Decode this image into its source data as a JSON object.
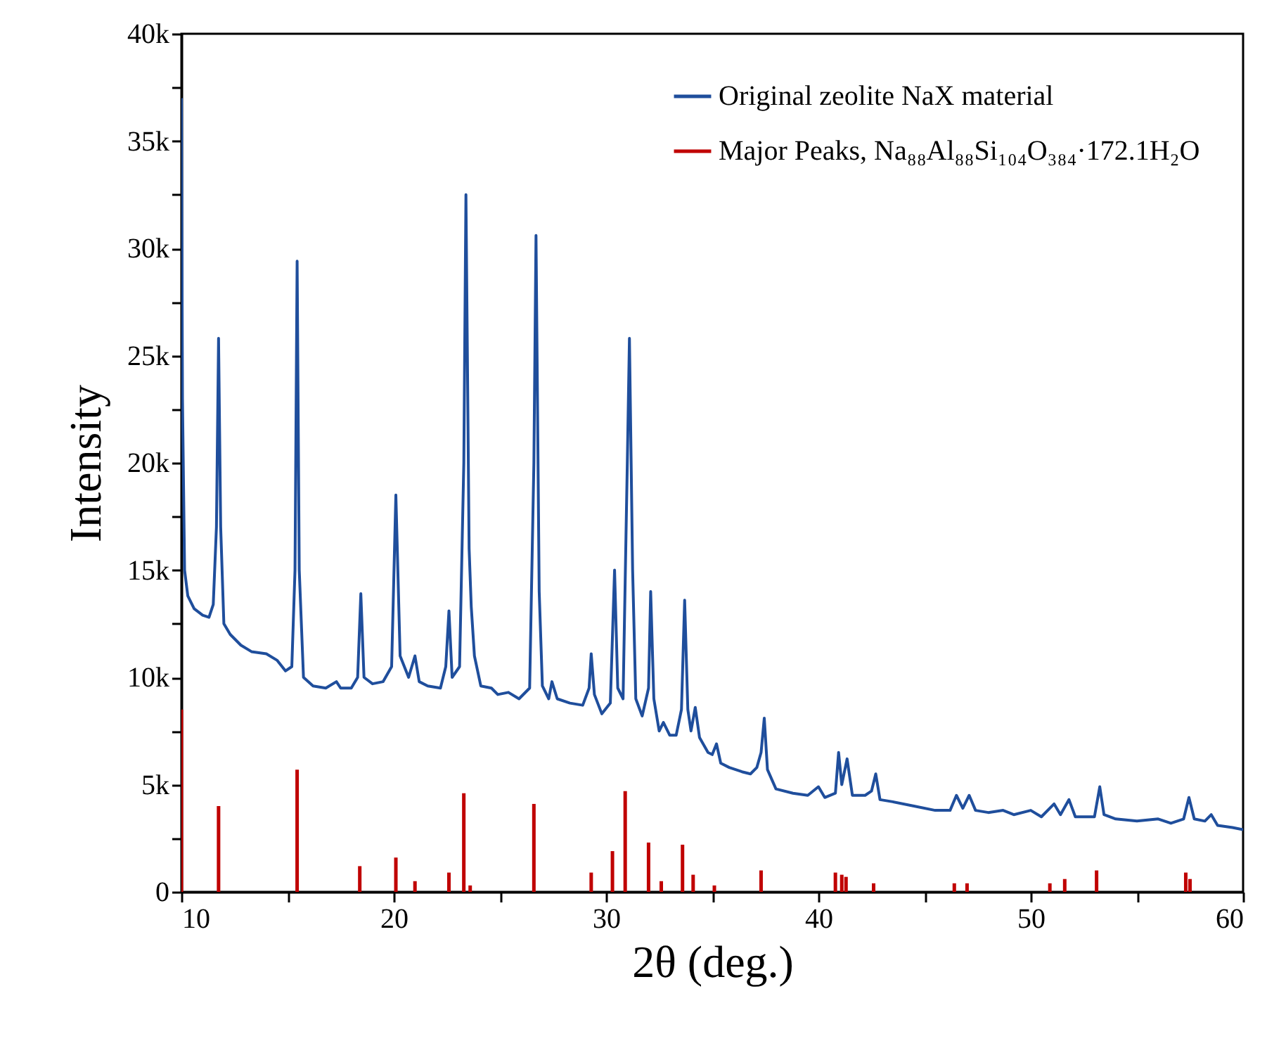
{
  "chart_data": {
    "type": "line",
    "xlabel": "2θ (deg.)",
    "ylabel": "Intensity",
    "xlim": [
      10,
      60
    ],
    "ylim": [
      0,
      40000
    ],
    "xticks": [
      10,
      {
        "value": 15,
        "label": null
      },
      20,
      {
        "value": 25,
        "label": null
      },
      30,
      {
        "value": 35,
        "label": null
      },
      40,
      {
        "value": 45,
        "label": null
      },
      50,
      {
        "value": 55,
        "label": null
      },
      60
    ],
    "yticks": [
      {
        "value": 0,
        "label": "0"
      },
      {
        "value": 2500,
        "label": null
      },
      {
        "value": 5000,
        "label": "5k"
      },
      {
        "value": 7500,
        "label": null
      },
      {
        "value": 10000,
        "label": "10k"
      },
      {
        "value": 12500,
        "label": null
      },
      {
        "value": 15000,
        "label": "15k"
      },
      {
        "value": 17500,
        "label": null
      },
      {
        "value": 20000,
        "label": "20k"
      },
      {
        "value": 22500,
        "label": null
      },
      {
        "value": 25000,
        "label": "25k"
      },
      {
        "value": 27500,
        "label": null
      },
      {
        "value": 30000,
        "label": "30k"
      },
      {
        "value": 32500,
        "label": null
      },
      {
        "value": 35000,
        "label": "35k"
      },
      {
        "value": 37500,
        "label": null
      },
      {
        "value": 40000,
        "label": "40k"
      }
    ],
    "grid": false,
    "legend": "top right",
    "series": [
      {
        "name": "Original zeolite NaX material",
        "color": "#1f4e9c",
        "x": [
          10.0,
          10.05,
          10.15,
          10.3,
          10.6,
          11.0,
          11.3,
          11.5,
          11.65,
          11.75,
          11.85,
          12.0,
          12.3,
          12.8,
          13.3,
          14.0,
          14.5,
          14.9,
          15.2,
          15.35,
          15.45,
          15.55,
          15.75,
          16.2,
          16.8,
          17.3,
          17.5,
          18.0,
          18.3,
          18.45,
          18.6,
          19.0,
          19.5,
          19.9,
          20.1,
          20.3,
          20.7,
          21.0,
          21.2,
          21.6,
          22.2,
          22.45,
          22.6,
          22.75,
          23.1,
          23.3,
          23.4,
          23.55,
          23.65,
          23.8,
          24.1,
          24.6,
          24.9,
          25.4,
          25.9,
          26.4,
          26.6,
          26.7,
          26.85,
          27.0,
          27.3,
          27.45,
          27.7,
          28.3,
          28.9,
          29.2,
          29.3,
          29.45,
          29.8,
          30.2,
          30.4,
          30.55,
          30.8,
          31.0,
          31.1,
          31.25,
          31.4,
          31.7,
          32.0,
          32.1,
          32.25,
          32.5,
          32.7,
          33.0,
          33.3,
          33.55,
          33.7,
          33.85,
          34.0,
          34.2,
          34.4,
          34.8,
          35.0,
          35.2,
          35.4,
          35.8,
          36.4,
          36.8,
          37.1,
          37.3,
          37.45,
          37.6,
          38.0,
          38.8,
          39.5,
          40.0,
          40.3,
          40.8,
          40.95,
          41.1,
          41.35,
          41.6,
          42.2,
          42.5,
          42.7,
          42.9,
          43.5,
          44.5,
          45.5,
          46.2,
          46.5,
          46.8,
          47.1,
          47.4,
          48.0,
          48.7,
          49.2,
          50.0,
          50.5,
          51.1,
          51.4,
          51.8,
          52.1,
          53.0,
          53.25,
          53.45,
          54.0,
          55.0,
          56.0,
          56.6,
          57.2,
          57.45,
          57.7,
          58.2,
          58.5,
          58.8,
          59.5,
          60.0
        ],
        "values": [
          37000,
          23000,
          15000,
          13800,
          13200,
          12900,
          12800,
          13400,
          17000,
          25800,
          17000,
          12500,
          12000,
          11500,
          11200,
          11100,
          10800,
          10300,
          10500,
          15000,
          29400,
          15000,
          10000,
          9600,
          9500,
          9800,
          9500,
          9500,
          10000,
          13900,
          10000,
          9700,
          9800,
          10500,
          18500,
          11000,
          10000,
          11000,
          9800,
          9600,
          9500,
          10500,
          13100,
          10000,
          10500,
          20000,
          32500,
          16000,
          13300,
          11000,
          9600,
          9500,
          9200,
          9300,
          9000,
          9500,
          20000,
          30600,
          14000,
          9600,
          9000,
          9800,
          9000,
          8800,
          8700,
          9500,
          11100,
          9200,
          8300,
          8800,
          15000,
          9500,
          9000,
          20000,
          25800,
          15000,
          9000,
          8200,
          9500,
          14000,
          9000,
          7500,
          7900,
          7300,
          7300,
          8500,
          13600,
          8500,
          7500,
          8600,
          7200,
          6500,
          6400,
          6900,
          6000,
          5800,
          5600,
          5500,
          5800,
          6500,
          8100,
          5700,
          4800,
          4600,
          4500,
          4900,
          4400,
          4600,
          6500,
          5000,
          6200,
          4500,
          4500,
          4700,
          5500,
          4300,
          4200,
          4000,
          3800,
          3800,
          4500,
          3900,
          4500,
          3800,
          3700,
          3800,
          3600,
          3800,
          3500,
          4100,
          3600,
          4300,
          3500,
          3500,
          4900,
          3600,
          3400,
          3300,
          3400,
          3200,
          3400,
          4400,
          3400,
          3300,
          3600,
          3100,
          3000,
          2900
        ]
      },
      {
        "name": "Major Peaks, Na₈₈Al₈₈Si₁₀₄O₃₈₄·172.1H₂O",
        "type": "bar",
        "color": "#c00000",
        "x": [
          10.0,
          11.75,
          15.45,
          18.4,
          20.1,
          21.0,
          22.6,
          23.3,
          23.6,
          26.6,
          29.3,
          30.3,
          30.9,
          32.0,
          32.6,
          33.6,
          34.1,
          35.1,
          37.3,
          40.8,
          41.1,
          41.3,
          42.6,
          46.4,
          47.0,
          50.9,
          51.6,
          53.1,
          57.3,
          57.5
        ],
        "values": [
          8500,
          4000,
          5700,
          1200,
          1600,
          500,
          900,
          4600,
          300,
          4100,
          900,
          1900,
          4700,
          2300,
          500,
          2200,
          800,
          300,
          1000,
          900,
          800,
          700,
          400,
          400,
          400,
          400,
          600,
          1000,
          900,
          600
        ]
      }
    ]
  }
}
